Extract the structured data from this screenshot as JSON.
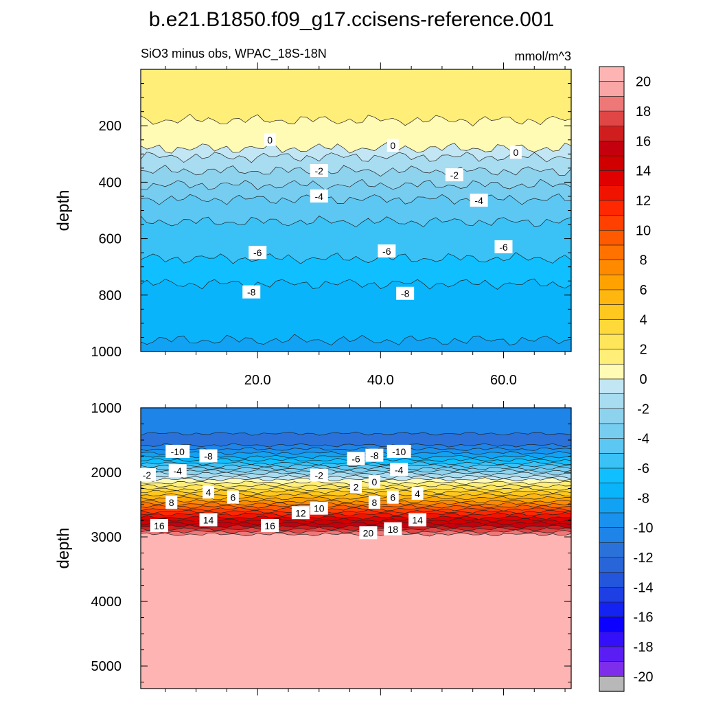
{
  "title": "b.e21.B1850.f09_g17.ccisens-reference.001",
  "subtitle_left": "SiO3 minus obs, WPAC_18S-18N",
  "units": "mmol/m^3",
  "chart_data": {
    "type": "heatmap",
    "variable": "SiO3 minus obs",
    "region": "WPAC_18S-18N",
    "x_tick_labels": [
      "20.0",
      "40.0",
      "60.0"
    ],
    "x_ticks": [
      20,
      40,
      60
    ],
    "xlim": [
      1,
      71
    ],
    "colorbar": {
      "levels": [
        -21,
        -20,
        -19,
        -18,
        -17,
        -16,
        -15,
        -14,
        -13,
        -12,
        -11,
        -10,
        -9,
        -8,
        -7,
        -6,
        -5,
        -4,
        -3,
        -2,
        -1,
        0,
        1,
        2,
        3,
        4,
        5,
        6,
        7,
        8,
        9,
        10,
        11,
        12,
        13,
        14,
        15,
        16,
        17,
        18,
        19,
        20,
        21
      ],
      "colors": [
        "#B8B8B8",
        "#7E2EEB",
        "#5A1EF5",
        "#3410FA",
        "#0C00FF",
        "#1422F2",
        "#1E3FE4",
        "#2356DC",
        "#2865D8",
        "#2A72DA",
        "#1E84E8",
        "#1892EE",
        "#12A2F4",
        "#0AB4FA",
        "#10BFFF",
        "#3AC2F6",
        "#5CC7F2",
        "#76CDF0",
        "#8ED3EE",
        "#A8DCF0",
        "#C2E6F4",
        "#FFFAB4",
        "#FFEE78",
        "#FFE55A",
        "#FFD93A",
        "#FFC81E",
        "#FFB60E",
        "#FFA200",
        "#FF8A00",
        "#FF7200",
        "#FF5A00",
        "#FF4000",
        "#FF2800",
        "#F01400",
        "#E00000",
        "#D00000",
        "#C4000E",
        "#D01E1E",
        "#E04646",
        "#EE7878",
        "#FAA6A6",
        "#FFB4B4"
      ],
      "tick_labels": [
        "20",
        "18",
        "16",
        "14",
        "12",
        "10",
        "8",
        "6",
        "4",
        "2",
        "0",
        "-2",
        "-4",
        "-6",
        "-8",
        "-10",
        "-12",
        "-14",
        "-16",
        "-18",
        "-20"
      ]
    },
    "panels": [
      {
        "name": "upper",
        "ylabel": "depth",
        "ylim": [
          0,
          1000
        ],
        "y_tick_labels": [
          "200",
          "400",
          "600",
          "800",
          "1000"
        ],
        "y_ticks": [
          200,
          400,
          600,
          800,
          1000
        ],
        "bands": [
          {
            "top": 0,
            "value": 1.5
          },
          {
            "top": 180,
            "value": 0.5
          },
          {
            "top": 280,
            "value": -0.5
          },
          {
            "top": 310,
            "value": -1.5
          },
          {
            "top": 360,
            "value": -2.5
          },
          {
            "top": 410,
            "value": -3.5
          },
          {
            "top": 460,
            "value": -4.5
          },
          {
            "top": 540,
            "value": -5.5
          },
          {
            "top": 670,
            "value": -6.5
          },
          {
            "top": 760,
            "value": -7.5
          },
          {
            "top": 960,
            "value": -8.5
          }
        ],
        "contour_labels": [
          {
            "x": 22,
            "depth": 250,
            "text": "0"
          },
          {
            "x": 42,
            "depth": 270,
            "text": "0"
          },
          {
            "x": 62,
            "depth": 295,
            "text": "0"
          },
          {
            "x": 30,
            "depth": 360,
            "text": "-2"
          },
          {
            "x": 52,
            "depth": 375,
            "text": "-2"
          },
          {
            "x": 30,
            "depth": 450,
            "text": "-4"
          },
          {
            "x": 56,
            "depth": 465,
            "text": "-4"
          },
          {
            "x": 20,
            "depth": 650,
            "text": "-6"
          },
          {
            "x": 41,
            "depth": 645,
            "text": "-6"
          },
          {
            "x": 60,
            "depth": 630,
            "text": "-6"
          },
          {
            "x": 19,
            "depth": 790,
            "text": "-8"
          },
          {
            "x": 44,
            "depth": 795,
            "text": "-8"
          }
        ]
      },
      {
        "name": "lower",
        "ylabel": "depth",
        "ylim": [
          1000,
          5350
        ],
        "y_tick_labels": [
          "1000",
          "2000",
          "3000",
          "4000",
          "5000"
        ],
        "y_ticks": [
          1000,
          2000,
          3000,
          4000,
          5000
        ],
        "bands": [
          {
            "top": 1000,
            "value": -10.5
          },
          {
            "top": 1400,
            "value": -11.5
          },
          {
            "top": 1580,
            "value": -10.5
          },
          {
            "top": 1640,
            "value": -9.5
          },
          {
            "top": 1700,
            "value": -8.5
          },
          {
            "top": 1760,
            "value": -7.5
          },
          {
            "top": 1810,
            "value": -6.5
          },
          {
            "top": 1860,
            "value": -5.5
          },
          {
            "top": 1900,
            "value": -4.5
          },
          {
            "top": 1940,
            "value": -3.5
          },
          {
            "top": 1980,
            "value": -2.5
          },
          {
            "top": 2020,
            "value": -1.5
          },
          {
            "top": 2070,
            "value": -0.5
          },
          {
            "top": 2110,
            "value": 0.5
          },
          {
            "top": 2160,
            "value": 1.5
          },
          {
            "top": 2210,
            "value": 2.5
          },
          {
            "top": 2260,
            "value": 3.5
          },
          {
            "top": 2300,
            "value": 4.5
          },
          {
            "top": 2350,
            "value": 5.5
          },
          {
            "top": 2400,
            "value": 6.5
          },
          {
            "top": 2450,
            "value": 7.5
          },
          {
            "top": 2490,
            "value": 8.5
          },
          {
            "top": 2530,
            "value": 9.5
          },
          {
            "top": 2570,
            "value": 10.5
          },
          {
            "top": 2610,
            "value": 11.5
          },
          {
            "top": 2650,
            "value": 12.5
          },
          {
            "top": 2700,
            "value": 13.5
          },
          {
            "top": 2740,
            "value": 14.5
          },
          {
            "top": 2790,
            "value": 15.5
          },
          {
            "top": 2840,
            "value": 16.5
          },
          {
            "top": 2880,
            "value": 17.5
          },
          {
            "top": 2920,
            "value": 18.5
          },
          {
            "top": 2960,
            "value": 20.5
          }
        ],
        "contour_labels": [
          {
            "x": 7,
            "depth": 1680,
            "text": "-10"
          },
          {
            "x": 12,
            "depth": 1750,
            "text": "-8"
          },
          {
            "x": 2,
            "depth": 2040,
            "text": "-2"
          },
          {
            "x": 7,
            "depth": 1980,
            "text": "-4"
          },
          {
            "x": 30,
            "depth": 2050,
            "text": "-2"
          },
          {
            "x": 36,
            "depth": 1790,
            "text": "-6"
          },
          {
            "x": 39,
            "depth": 1740,
            "text": "-8"
          },
          {
            "x": 43,
            "depth": 1680,
            "text": "-10"
          },
          {
            "x": 43,
            "depth": 1960,
            "text": "-4"
          },
          {
            "x": 36,
            "depth": 2230,
            "text": "2"
          },
          {
            "x": 39,
            "depth": 2150,
            "text": "0"
          },
          {
            "x": 12,
            "depth": 2310,
            "text": "4"
          },
          {
            "x": 16,
            "depth": 2390,
            "text": "6"
          },
          {
            "x": 6,
            "depth": 2470,
            "text": "8"
          },
          {
            "x": 39,
            "depth": 2470,
            "text": "8"
          },
          {
            "x": 42,
            "depth": 2390,
            "text": "6"
          },
          {
            "x": 46,
            "depth": 2330,
            "text": "4"
          },
          {
            "x": 27,
            "depth": 2630,
            "text": "12"
          },
          {
            "x": 30,
            "depth": 2560,
            "text": "10"
          },
          {
            "x": 12,
            "depth": 2740,
            "text": "14"
          },
          {
            "x": 46,
            "depth": 2740,
            "text": "14"
          },
          {
            "x": 4,
            "depth": 2830,
            "text": "16"
          },
          {
            "x": 22,
            "depth": 2830,
            "text": "16"
          },
          {
            "x": 42,
            "depth": 2880,
            "text": "18"
          },
          {
            "x": 38,
            "depth": 2940,
            "text": "20"
          }
        ]
      }
    ]
  }
}
